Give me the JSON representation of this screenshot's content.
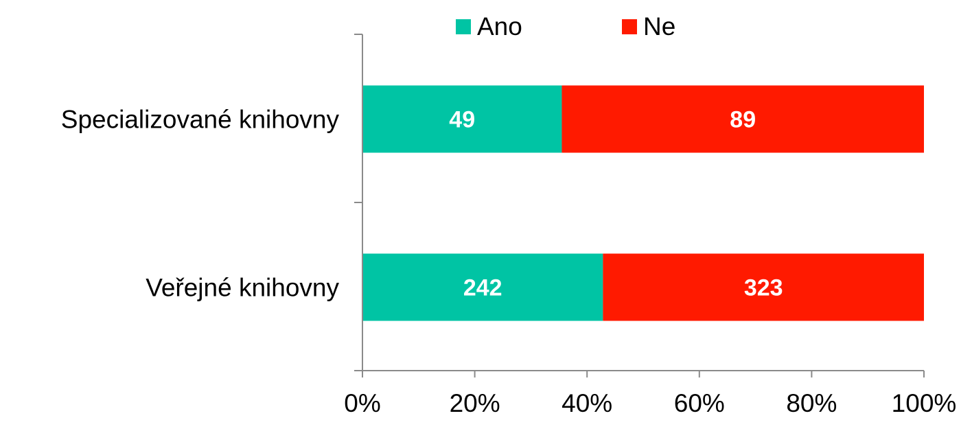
{
  "chart_data": {
    "type": "bar",
    "orientation": "horizontal",
    "stacked": "percent",
    "categories": [
      "Specializované knihovny",
      "Veřejné knihovny"
    ],
    "series": [
      {
        "name": "Ano",
        "values": [
          49,
          242
        ],
        "color": "#00c4a4"
      },
      {
        "name": "Ne",
        "values": [
          89,
          323
        ],
        "color": "#ff1a00"
      }
    ],
    "x_ticks": [
      "0%",
      "20%",
      "40%",
      "60%",
      "80%",
      "100%"
    ],
    "xlim": [
      0,
      100
    ],
    "grid": false,
    "legend_position": "top"
  }
}
